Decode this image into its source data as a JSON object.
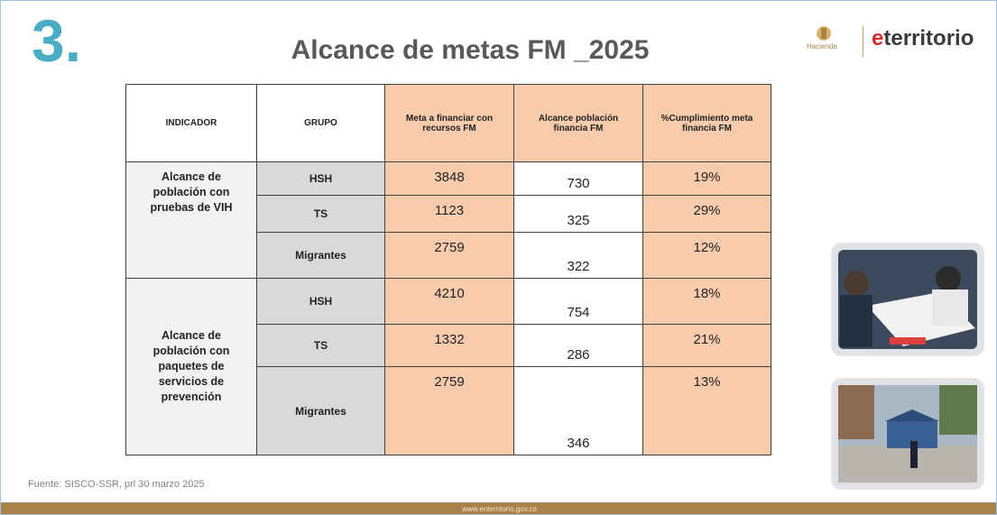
{
  "slide_number": "3.",
  "title": "Alcance de metas FM _2025",
  "logos": {
    "ministry": "Hacienda",
    "brand": [
      "e",
      "territorio"
    ]
  },
  "table": {
    "headers": [
      "INDICADOR",
      "GRUPO",
      "Meta a financiar con recursos FM",
      "Alcance población financia FM",
      "%Cumplimiento meta financia FM"
    ],
    "groups": [
      {
        "indicator": "Alcance de población con pruebas de VIH",
        "rows": [
          [
            "HSH",
            "3848",
            "730",
            "19%"
          ],
          [
            "TS",
            "1123",
            "325",
            "29%"
          ],
          [
            "Migrantes",
            "2759",
            "322",
            "12%"
          ]
        ]
      },
      {
        "indicator": "Alcance de población con paquetes de servicios de prevención",
        "rows": [
          [
            "HSH",
            "4210",
            "754",
            "18%"
          ],
          [
            "TS",
            "1332",
            "286",
            "21%"
          ],
          [
            "Migrantes",
            "2759",
            "346",
            "13%"
          ]
        ]
      }
    ]
  },
  "source": "Fuente: SISCO-SSR, prl 30 marzo 2025",
  "footer": "www.enterritorio.gov.co"
}
